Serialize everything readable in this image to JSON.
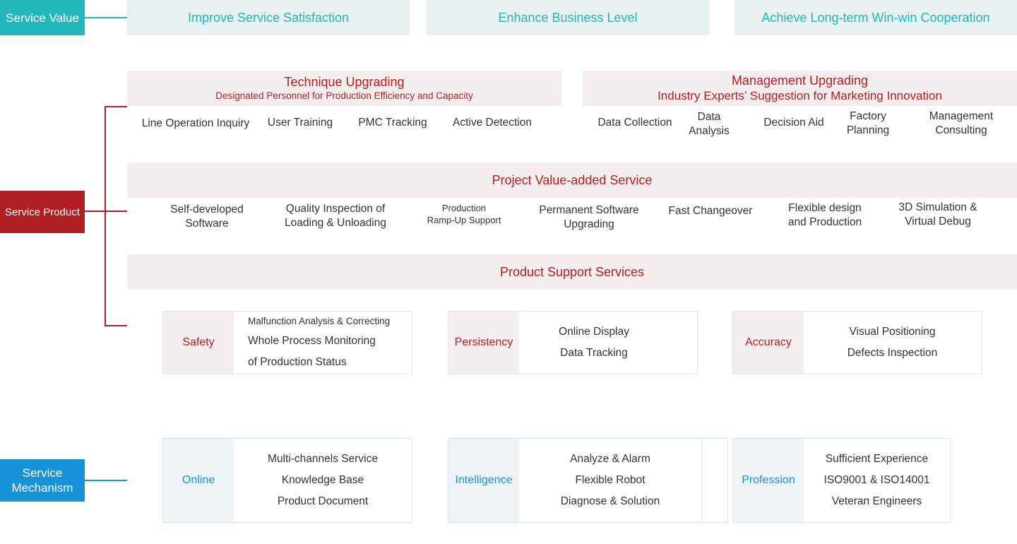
{
  "colors": {
    "teal": "#22b8bb",
    "red": "#b01f24",
    "blue": "#1793d8"
  },
  "service_value": {
    "label": "Service Value",
    "items": [
      "Improve Service Satisfaction",
      "Enhance Business Level",
      "Achieve Long-term Win-win Cooperation"
    ]
  },
  "service_product": {
    "label": "Service Product",
    "technique": {
      "title": "Technique Upgrading",
      "subtitle": "Designated Personnel for Production Efficiency and Capacity",
      "items": [
        "Line Operation Inquiry",
        "User Training",
        "PMC Tracking",
        "Active Detection"
      ]
    },
    "management": {
      "title": "Management Upgrading",
      "subtitle": "Industry Experts’ Suggestion for Marketing Innovation",
      "items": [
        "Data Collection",
        "Data\nAnalysis",
        "Decision Aid",
        "Factory\nPlanning",
        "Management\nConsulting"
      ]
    },
    "project": {
      "title": "Project Value-added Service",
      "items": [
        "Self-developed\nSoftware",
        "Quality Inspection of\nLoading & Unloading",
        "Production\nRamp-Up Support",
        "Permanent Software\nUpgrading",
        "Fast Changeover",
        "Flexible design\nand Production",
        "3D Simulation &\nVirtual Debug"
      ]
    },
    "support": {
      "title": "Product Support Services",
      "cards": [
        {
          "label": "Safety",
          "items": [
            "Malfunction Analysis & Correcting",
            "Whole Process Monitoring",
            "of Production Status"
          ]
        },
        {
          "label": "Persistency",
          "items": [
            "Online Display",
            "Data Tracking"
          ]
        },
        {
          "label": "Accuracy",
          "items": [
            "Visual Positioning",
            "Defects Inspection"
          ]
        }
      ]
    }
  },
  "service_mechanism": {
    "label": "Service\nMechanism",
    "cards": [
      {
        "label": "Online",
        "items": [
          "Multi-channels Service",
          "Knowledge Base",
          "Product Document"
        ]
      },
      {
        "label": "Intelligence",
        "items": [
          "Analyze & Alarm",
          "Flexible Robot",
          "Diagnose & Solution"
        ]
      },
      {
        "label": "Profession",
        "items": [
          "Sufficient Experience",
          "ISO9001 & ISO14001",
          "Veteran Engineers"
        ]
      }
    ]
  }
}
